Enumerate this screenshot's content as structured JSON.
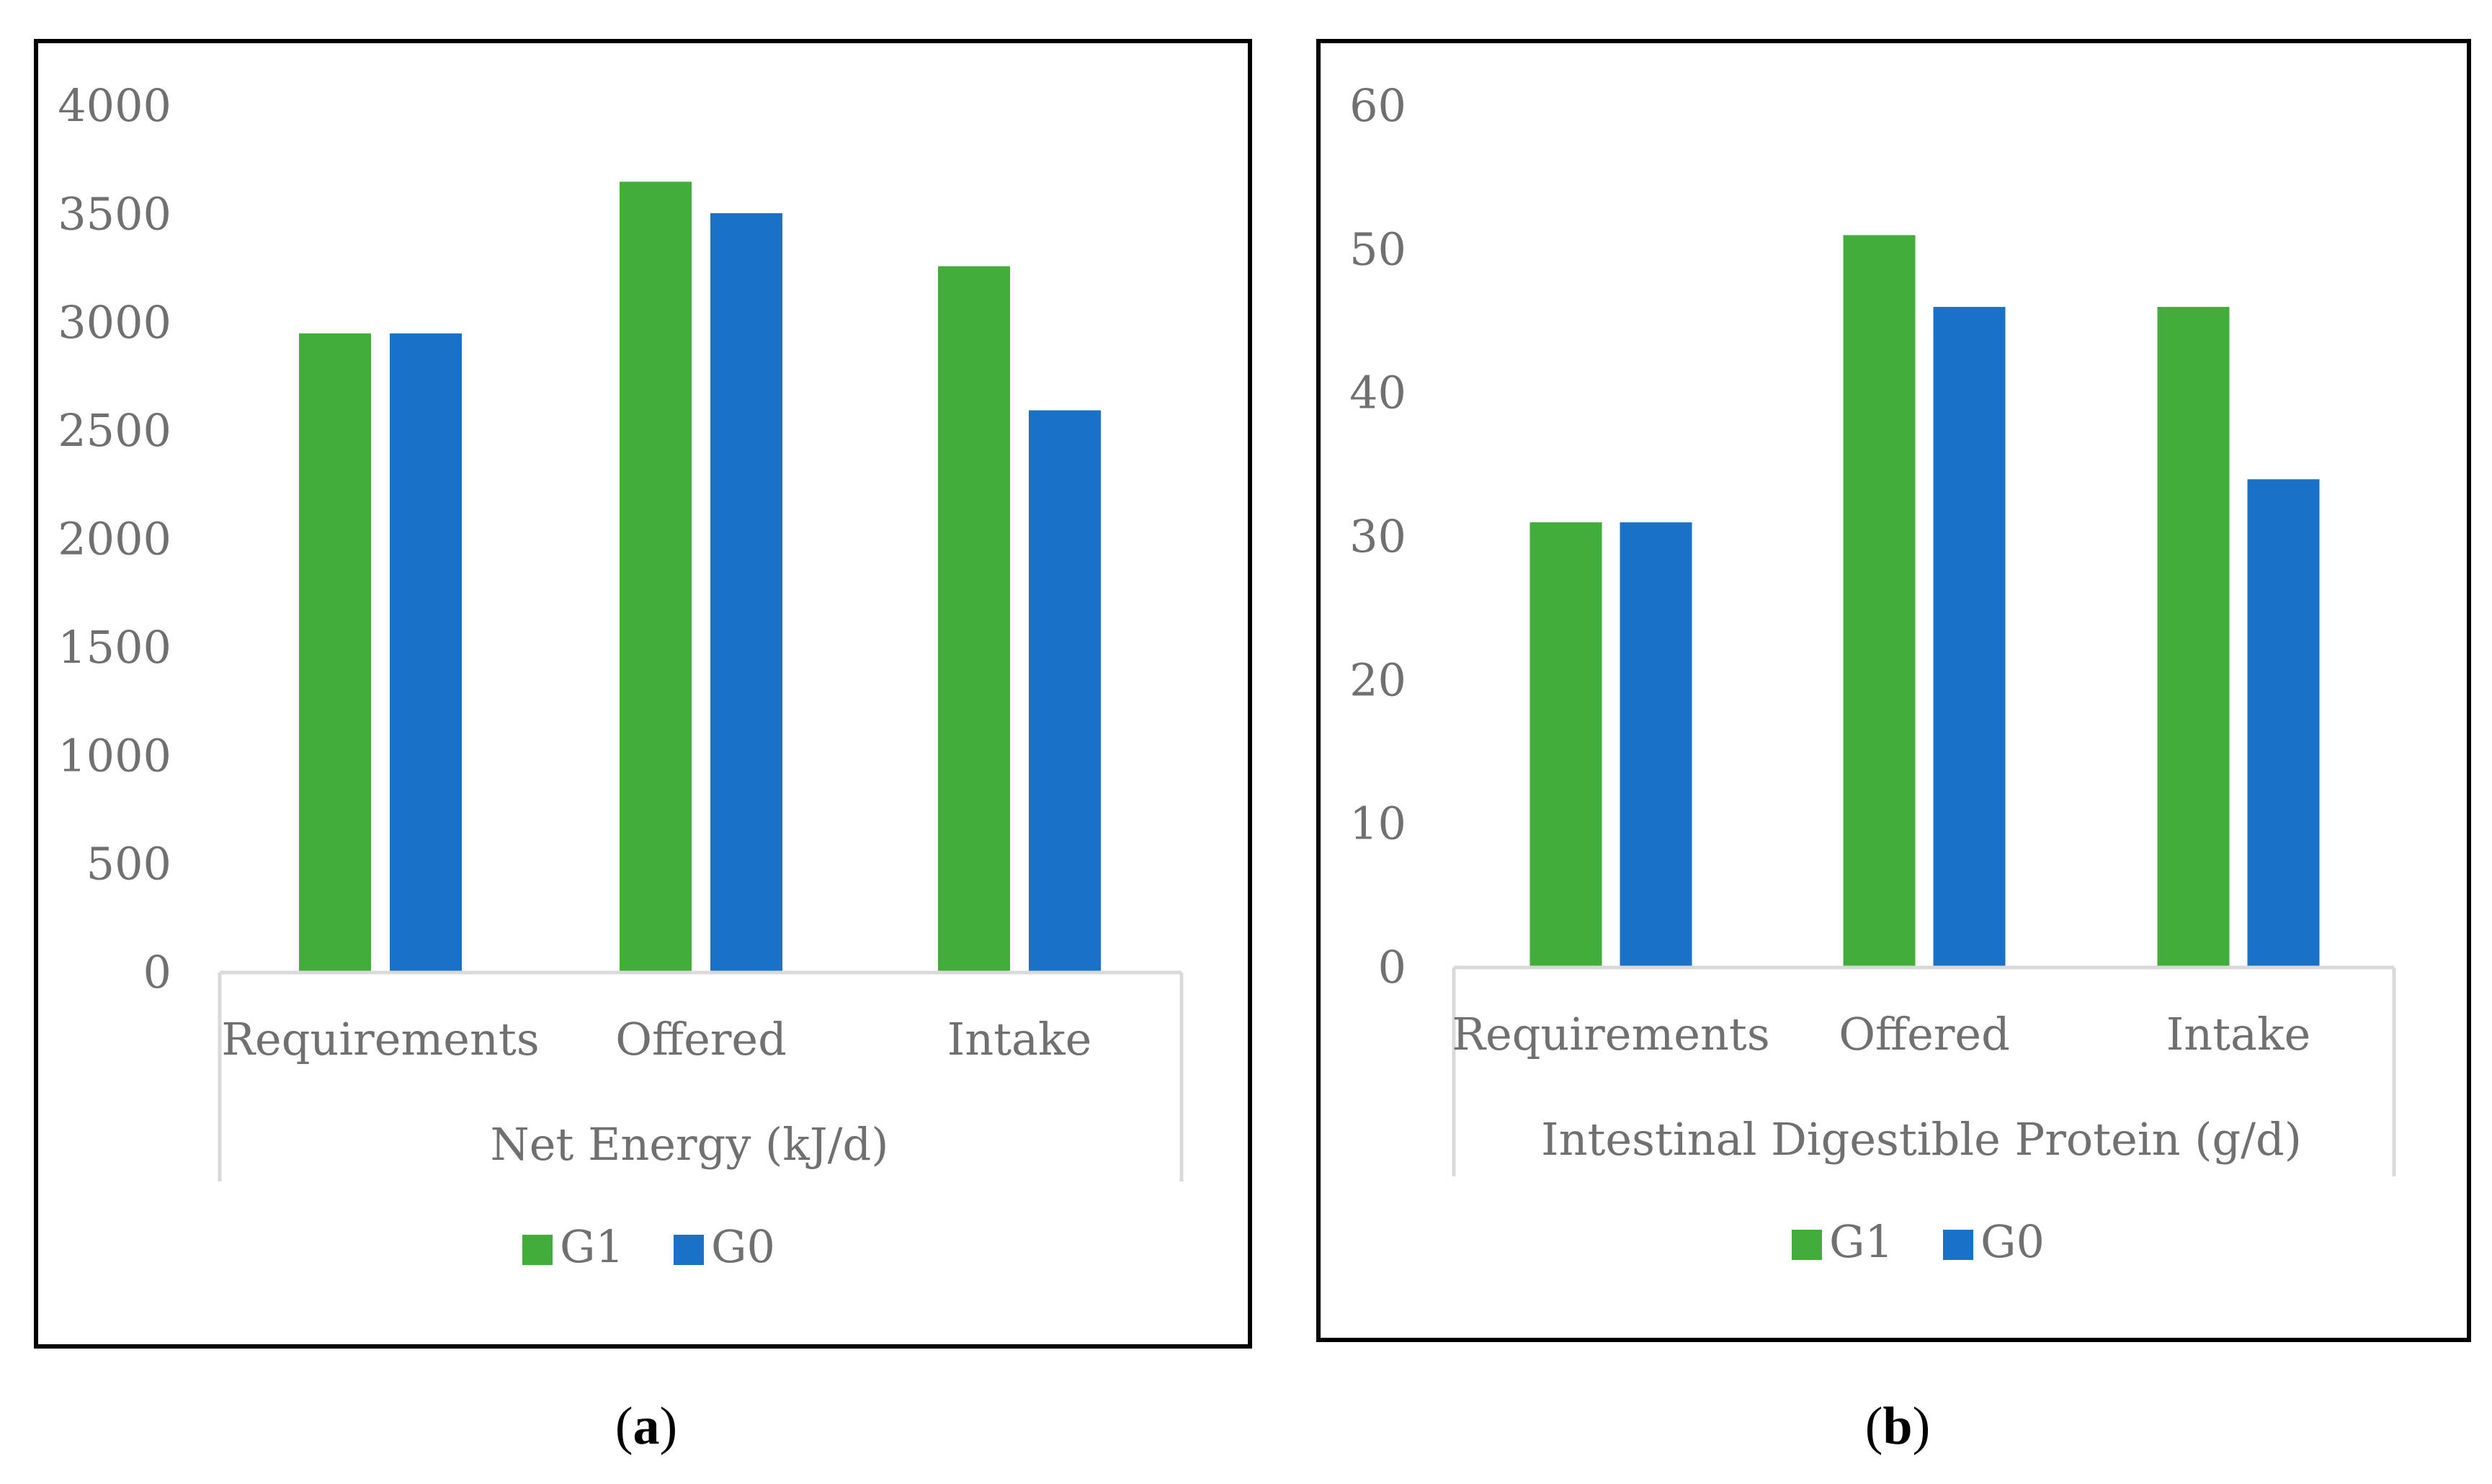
{
  "colors": {
    "G1": "#43AD3B",
    "G0": "#1A72C7",
    "axis": "#D9D9D9",
    "frame": "#000000"
  },
  "chart_data": [
    {
      "type": "bar",
      "panel": "a",
      "categories": [
        "Requirements",
        "Offered",
        "Intake"
      ],
      "series": [
        {
          "name": "G1",
          "values": [
            2950,
            3650,
            3260
          ]
        },
        {
          "name": "G0",
          "values": [
            2950,
            3505,
            2595
          ]
        }
      ],
      "xlabel": "Net Energy (kJ/d)",
      "ylabel": "",
      "ylim": [
        0,
        4000
      ],
      "yticks": [
        0,
        500,
        1000,
        1500,
        2000,
        2500,
        3000,
        3500,
        4000
      ],
      "legend": "bottom",
      "grid": false
    },
    {
      "type": "bar",
      "panel": "b",
      "categories": [
        "Requirements",
        "Offered",
        "Intake"
      ],
      "series": [
        {
          "name": "G1",
          "values": [
            31,
            51,
            46
          ]
        },
        {
          "name": "G0",
          "values": [
            31,
            46,
            34
          ]
        }
      ],
      "xlabel": "Intestinal Digestible Protein (g/d)",
      "ylabel": "",
      "ylim": [
        0,
        60
      ],
      "yticks": [
        0,
        10,
        20,
        30,
        40,
        50,
        60
      ],
      "legend": "bottom",
      "grid": false
    }
  ],
  "panel_labels": [
    {
      "open": "(",
      "letter": "a",
      "close": ")"
    },
    {
      "open": "(",
      "letter": "b",
      "close": ")"
    }
  ]
}
